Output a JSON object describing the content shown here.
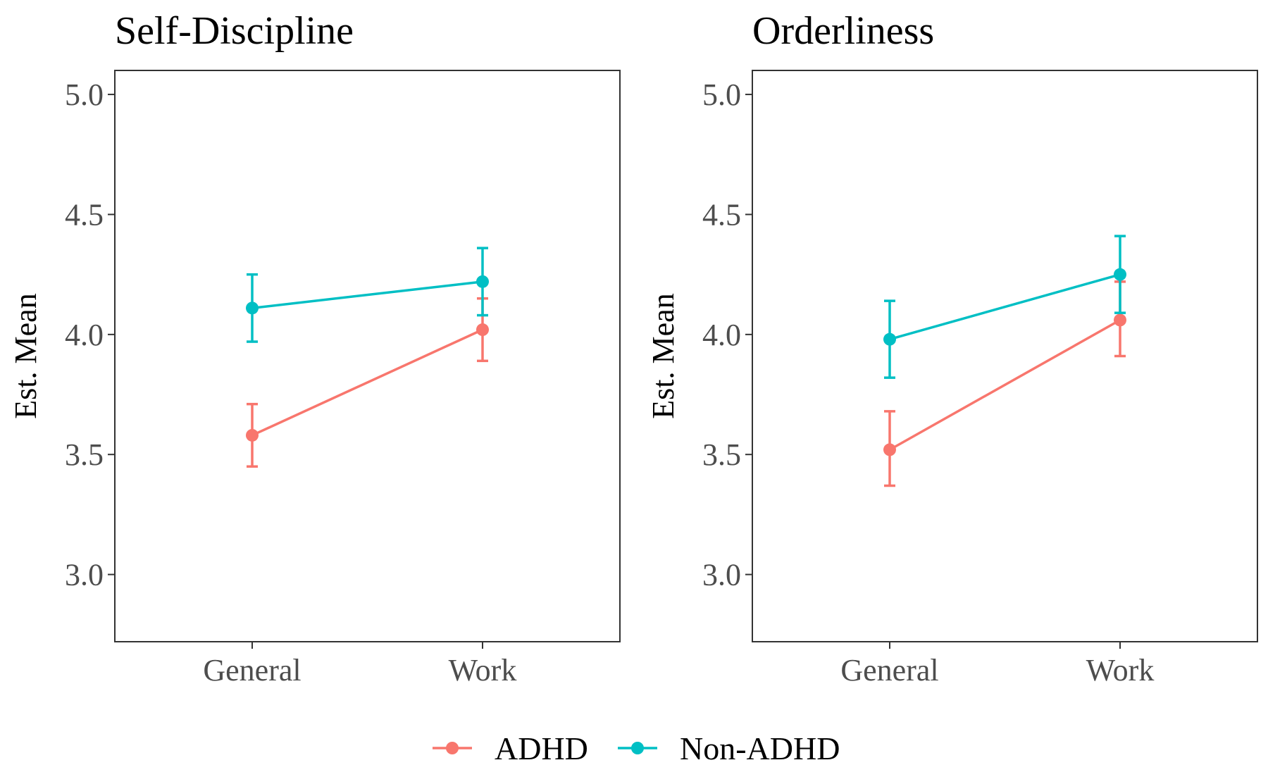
{
  "colors": {
    "ADHD": "#F8766D",
    "Non-ADHD": "#00BFC4"
  },
  "legend": {
    "position": "bottom",
    "items": [
      {
        "label": "ADHD",
        "color": "#F8766D"
      },
      {
        "label": "Non-ADHD",
        "color": "#00BFC4"
      }
    ]
  },
  "chart_data": [
    {
      "type": "line",
      "title": "Self-Discipline",
      "xlabel": "",
      "ylabel": "Est. Mean",
      "categories": [
        "General",
        "Work"
      ],
      "ylim": [
        2.72,
        5.1
      ],
      "yticks": [
        "3.0",
        "3.5",
        "4.0",
        "4.5",
        "5.0"
      ],
      "grid": false,
      "series": [
        {
          "name": "ADHD",
          "values": [
            3.58,
            4.02
          ],
          "lower": [
            3.45,
            3.89
          ],
          "upper": [
            3.71,
            4.15
          ]
        },
        {
          "name": "Non-ADHD",
          "values": [
            4.11,
            4.22
          ],
          "lower": [
            3.97,
            4.08
          ],
          "upper": [
            4.25,
            4.36
          ]
        }
      ]
    },
    {
      "type": "line",
      "title": "Orderliness",
      "xlabel": "",
      "ylabel": "Est. Mean",
      "categories": [
        "General",
        "Work"
      ],
      "ylim": [
        2.72,
        5.1
      ],
      "yticks": [
        "3.0",
        "3.5",
        "4.0",
        "4.5",
        "5.0"
      ],
      "grid": false,
      "series": [
        {
          "name": "ADHD",
          "values": [
            3.52,
            4.06
          ],
          "lower": [
            3.37,
            3.91
          ],
          "upper": [
            3.68,
            4.22
          ]
        },
        {
          "name": "Non-ADHD",
          "values": [
            3.98,
            4.25
          ],
          "lower": [
            3.82,
            4.09
          ],
          "upper": [
            4.14,
            4.41
          ]
        }
      ]
    }
  ]
}
